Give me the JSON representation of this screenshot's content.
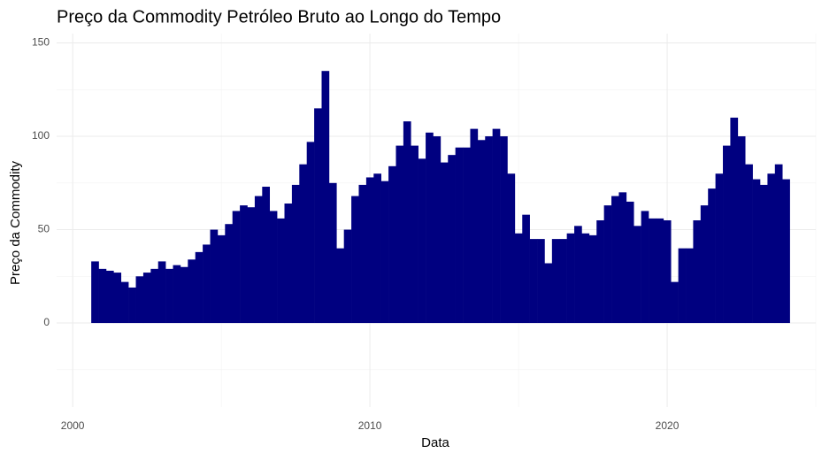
{
  "chart_data": {
    "type": "bar",
    "title": "Preço da Commodity Petróleo Bruto ao Longo do Tempo",
    "x_label": "Data",
    "y_label": "Preço da Commodity",
    "color": "#000080",
    "x": [
      2000.75,
      2001,
      2001.25,
      2001.5,
      2001.75,
      2002,
      2002.25,
      2002.5,
      2002.75,
      2003,
      2003.25,
      2003.5,
      2003.75,
      2004,
      2004.25,
      2004.5,
      2004.75,
      2005,
      2005.25,
      2005.5,
      2005.75,
      2006,
      2006.25,
      2006.5,
      2006.75,
      2007,
      2007.25,
      2007.5,
      2007.75,
      2008,
      2008.25,
      2008.5,
      2008.75,
      2009,
      2009.25,
      2009.5,
      2009.75,
      2010,
      2010.25,
      2010.5,
      2010.75,
      2011,
      2011.25,
      2011.5,
      2011.75,
      2012,
      2012.25,
      2012.5,
      2012.75,
      2013,
      2013.25,
      2013.5,
      2013.75,
      2014,
      2014.25,
      2014.5,
      2014.75,
      2015,
      2015.25,
      2015.5,
      2015.75,
      2016,
      2016.25,
      2016.5,
      2016.75,
      2017,
      2017.25,
      2017.5,
      2017.75,
      2018,
      2018.25,
      2018.5,
      2018.75,
      2019,
      2019.25,
      2019.5,
      2019.75,
      2020,
      2020.25,
      2020.5,
      2020.75,
      2021,
      2021.25,
      2021.5,
      2021.75,
      2022,
      2022.25,
      2022.5,
      2022.75,
      2023,
      2023.25,
      2023.5,
      2023.75,
      2024
    ],
    "values": [
      33,
      29,
      28,
      27,
      22,
      19,
      25,
      27,
      29,
      33,
      29,
      31,
      30,
      34,
      38,
      42,
      50,
      47,
      53,
      60,
      63,
      62,
      68,
      73,
      60,
      56,
      64,
      74,
      85,
      97,
      115,
      135,
      75,
      40,
      50,
      68,
      74,
      78,
      80,
      76,
      84,
      95,
      108,
      95,
      88,
      102,
      100,
      86,
      90,
      94,
      94,
      104,
      98,
      100,
      104,
      100,
      80,
      48,
      58,
      45,
      45,
      32,
      45,
      45,
      48,
      52,
      48,
      47,
      55,
      63,
      68,
      70,
      65,
      52,
      60,
      56,
      56,
      55,
      22,
      40,
      40,
      55,
      63,
      72,
      80,
      95,
      110,
      100,
      85,
      77,
      74,
      80,
      85,
      77
    ],
    "xlim": [
      1999.46,
      2025
    ],
    "xticks": [
      2000,
      2010,
      2020
    ],
    "ylim": [
      -45,
      155
    ],
    "yticks": [
      0,
      50,
      100,
      150
    ],
    "grid": true
  }
}
